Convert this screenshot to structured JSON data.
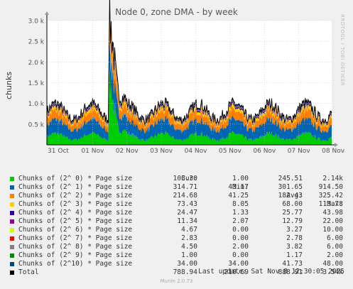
{
  "chart_data": {
    "type": "area",
    "title": "Node 0, zone DMA - by week",
    "ylabel": "chunks",
    "ylim": [
      0,
      3000
    ],
    "yticks": [
      {
        "value": 500,
        "label": "0.5 k"
      },
      {
        "value": 1000,
        "label": "1.0 k"
      },
      {
        "value": 1500,
        "label": "1.5 k"
      },
      {
        "value": 2000,
        "label": "2.0 k"
      },
      {
        "value": 2500,
        "label": "2.5 k"
      },
      {
        "value": 3000,
        "label": "3.0 k"
      }
    ],
    "xticks": [
      "31 Oct",
      "01 Nov",
      "02 Nov",
      "03 Nov",
      "04 Nov",
      "05 Nov",
      "06 Nov",
      "07 Nov",
      "08 Nov"
    ],
    "grid": true,
    "series": [
      {
        "name": "Chunks of (2^ 0) * Page size",
        "color": "#00cc00",
        "cur": "103.30",
        "min": "1.00",
        "avg": "245.51",
        "max": "2.14k"
      },
      {
        "name": "Chunks of (2^ 1) * Page size",
        "color": "#0066b3",
        "cur": "314.71",
        "min": "43.17",
        "avg": "301.65",
        "max": "914.50"
      },
      {
        "name": "Chunks of (2^ 2) * Page size",
        "color": "#ff8000",
        "cur": "214.68",
        "min": "41.25",
        "avg": "182.43",
        "max": "325.42"
      },
      {
        "name": "Chunks of (2^ 3) * Page size",
        "color": "#ffcc00",
        "cur": "73.43",
        "min": "8.05",
        "avg": "68.00",
        "max": "113.78"
      },
      {
        "name": "Chunks of (2^ 4) * Page size",
        "color": "#330099",
        "cur": "24.47",
        "min": "1.33",
        "avg": "25.77",
        "max": "43.98"
      },
      {
        "name": "Chunks of (2^ 5) * Page size",
        "color": "#990099",
        "cur": "11.34",
        "min": "2.07",
        "avg": "12.79",
        "max": "22.00"
      },
      {
        "name": "Chunks of (2^ 6) * Page size",
        "color": "#ccff00",
        "cur": "4.67",
        "min": "0.00",
        "avg": "3.27",
        "max": "10.00"
      },
      {
        "name": "Chunks of (2^ 7) * Page size",
        "color": "#ff0000",
        "cur": "2.83",
        "min": "0.00",
        "avg": "2.78",
        "max": "6.00"
      },
      {
        "name": "Chunks of (2^ 8) * Page size",
        "color": "#808080",
        "cur": "4.50",
        "min": "2.00",
        "avg": "3.82",
        "max": "6.00"
      },
      {
        "name": "Chunks of (2^ 9) * Page size",
        "color": "#008f00",
        "cur": "1.00",
        "min": "0.00",
        "avg": "1.17",
        "max": "2.00"
      },
      {
        "name": "Chunks of (2^10) * Page size",
        "color": "#00487d",
        "cur": "34.00",
        "min": "34.00",
        "avg": "41.73",
        "max": "48.00"
      }
    ],
    "total": {
      "name": "Total",
      "color": "#000000",
      "cur": "788.94",
      "min": "210.69",
      "avg": "888.91",
      "max": "3.54k"
    }
  },
  "legend_headers": {
    "cur": "Cur:",
    "min": "Min:",
    "avg": "Avg:",
    "max": "Max:"
  },
  "last_update": "Last update: Sat Nov  8 12:30:05 2025",
  "watermark": "RRDTOOL / TOBI OETIKER",
  "footer": "Munin 2.0.73"
}
